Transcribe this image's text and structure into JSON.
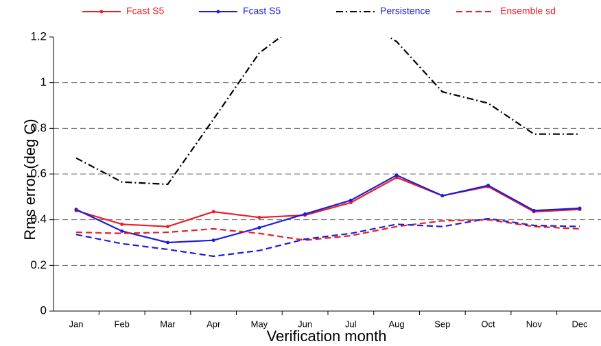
{
  "chart_data": {
    "type": "line",
    "xlabel": "Verification month",
    "ylabel": "Rms error (deg C)",
    "categories": [
      "Jan",
      "Feb",
      "Mar",
      "Apr",
      "May",
      "Jun",
      "Jul",
      "Aug",
      "Sep",
      "Oct",
      "Nov",
      "Dec"
    ],
    "ylim": [
      0,
      1.2
    ],
    "yticks": [
      0,
      0.2,
      0.4,
      0.6,
      0.8,
      1,
      1.2
    ],
    "grid": true,
    "legend": "top",
    "series": [
      {
        "name": "Fcast S5",
        "color": "#ee1c24",
        "linestyle": "solid",
        "marker": true,
        "values": [
          0.44,
          0.38,
          0.37,
          0.435,
          0.41,
          0.42,
          0.475,
          0.585,
          0.505,
          0.545,
          0.435,
          0.445
        ]
      },
      {
        "name": "Fcast S5",
        "color": "#1c1cdd",
        "linestyle": "solid",
        "marker": true,
        "values": [
          0.445,
          0.35,
          0.3,
          0.31,
          0.365,
          0.425,
          0.485,
          0.595,
          0.505,
          0.55,
          0.44,
          0.45
        ]
      },
      {
        "name": "Persistence",
        "color": "#000000",
        "linestyle": "dashdot",
        "marker": false,
        "values": [
          0.67,
          0.565,
          0.555,
          0.84,
          1.13,
          1.28,
          1.3,
          1.18,
          0.96,
          0.91,
          0.775,
          0.775
        ]
      },
      {
        "name": "Ensemble sd",
        "color": "#ee1c24",
        "linestyle": "dashed",
        "marker": false,
        "values": [
          0.345,
          0.34,
          0.345,
          0.36,
          0.34,
          0.31,
          0.33,
          0.37,
          0.395,
          0.4,
          0.37,
          0.36
        ]
      },
      {
        "color": "#1c1cdd",
        "linestyle": "dashed",
        "marker": false,
        "values": [
          0.335,
          0.295,
          0.27,
          0.24,
          0.265,
          0.315,
          0.34,
          0.38,
          0.37,
          0.405,
          0.375,
          0.37
        ]
      }
    ]
  }
}
